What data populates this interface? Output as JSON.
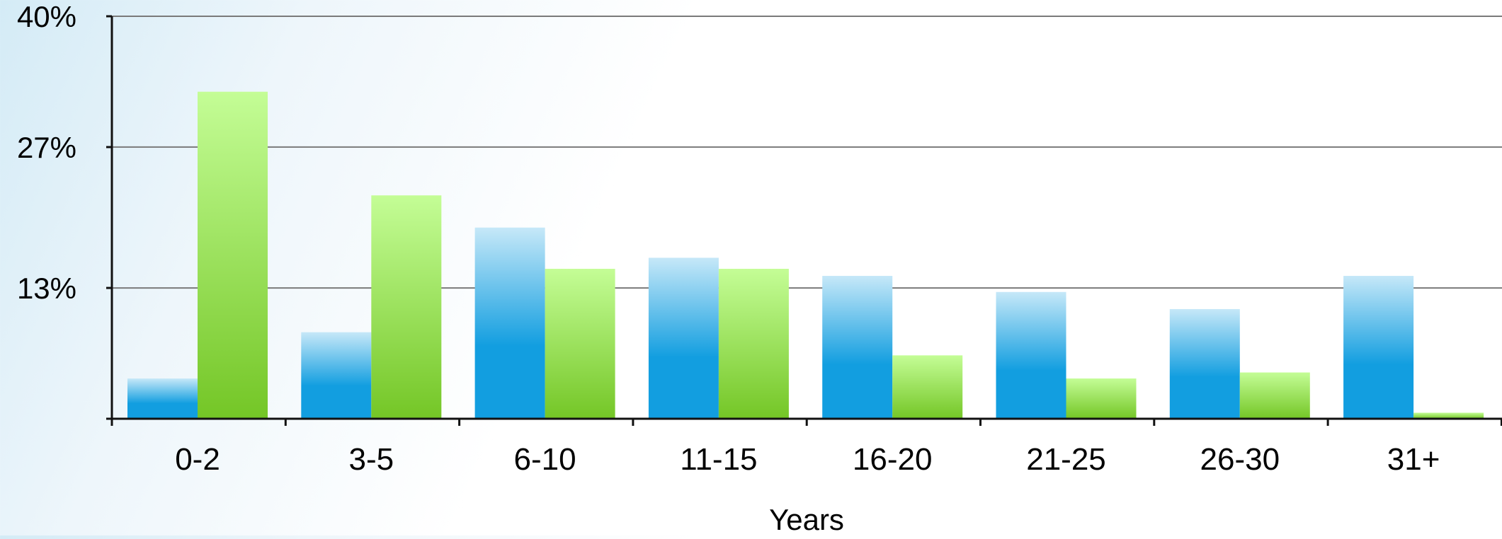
{
  "chart_data": {
    "type": "bar",
    "categories": [
      "0-2",
      "3-5",
      "6-10",
      "11-15",
      "16-20",
      "21-25",
      "26-30",
      "31+"
    ],
    "series": [
      {
        "values": [
          4,
          8.6,
          19,
          16,
          14.2,
          12.6,
          10.9,
          14.2
        ]
      },
      {
        "values": [
          32.5,
          22.2,
          14.9,
          14.9,
          6.3,
          4,
          4.6,
          0.6
        ]
      }
    ],
    "xlabel": "Years",
    "ylabel": "",
    "ylim": [
      0,
      40
    ],
    "yticks": [
      "40%",
      "27%",
      "13%"
    ],
    "grid": true,
    "colors": {
      "series_1_top": "#c6e8f8",
      "series_1_bottom": "#129ee0",
      "series_2_top": "#c4fd96",
      "series_2_bottom": "#74c626",
      "gridline": "#7a7a7a",
      "axis": "#111111",
      "text": "#000000"
    }
  }
}
